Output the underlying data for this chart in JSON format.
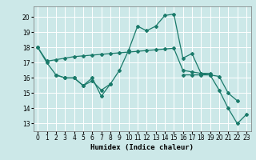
{
  "xlabel": "Humidex (Indice chaleur)",
  "xlim": [
    -0.5,
    23.5
  ],
  "ylim": [
    12.5,
    20.7
  ],
  "yticks": [
    13,
    14,
    15,
    16,
    17,
    18,
    19,
    20
  ],
  "xticks": [
    0,
    1,
    2,
    3,
    4,
    5,
    6,
    7,
    8,
    9,
    10,
    11,
    12,
    13,
    14,
    15,
    16,
    17,
    18,
    19,
    20,
    21,
    22,
    23
  ],
  "bg_color": "#cce8e8",
  "grid_color": "#ffffff",
  "line_color": "#1a7a6a",
  "series": [
    [
      18.0,
      17.0,
      16.2,
      16.0,
      16.0,
      15.5,
      16.0,
      14.8,
      15.6,
      16.5,
      17.8,
      19.4,
      19.1,
      19.4,
      20.1,
      20.2,
      17.3,
      17.6,
      16.3,
      16.3,
      null,
      null,
      null,
      null
    ],
    [
      null,
      null,
      16.2,
      16.0,
      16.0,
      15.5,
      15.8,
      15.2,
      15.6,
      null,
      null,
      null,
      null,
      null,
      null,
      null,
      null,
      null,
      null,
      null,
      null,
      null,
      null,
      null
    ],
    [
      null,
      null,
      null,
      null,
      null,
      null,
      null,
      null,
      null,
      null,
      null,
      null,
      null,
      null,
      null,
      null,
      16.2,
      16.2,
      16.2,
      16.2,
      15.2,
      14.0,
      13.0,
      13.6
    ],
    [
      18.0,
      17.1,
      17.2,
      17.3,
      17.4,
      17.45,
      17.5,
      17.55,
      17.6,
      17.65,
      17.7,
      17.75,
      17.8,
      17.85,
      17.9,
      17.95,
      16.5,
      16.4,
      16.3,
      16.2,
      16.1,
      15.0,
      14.5,
      null
    ]
  ]
}
